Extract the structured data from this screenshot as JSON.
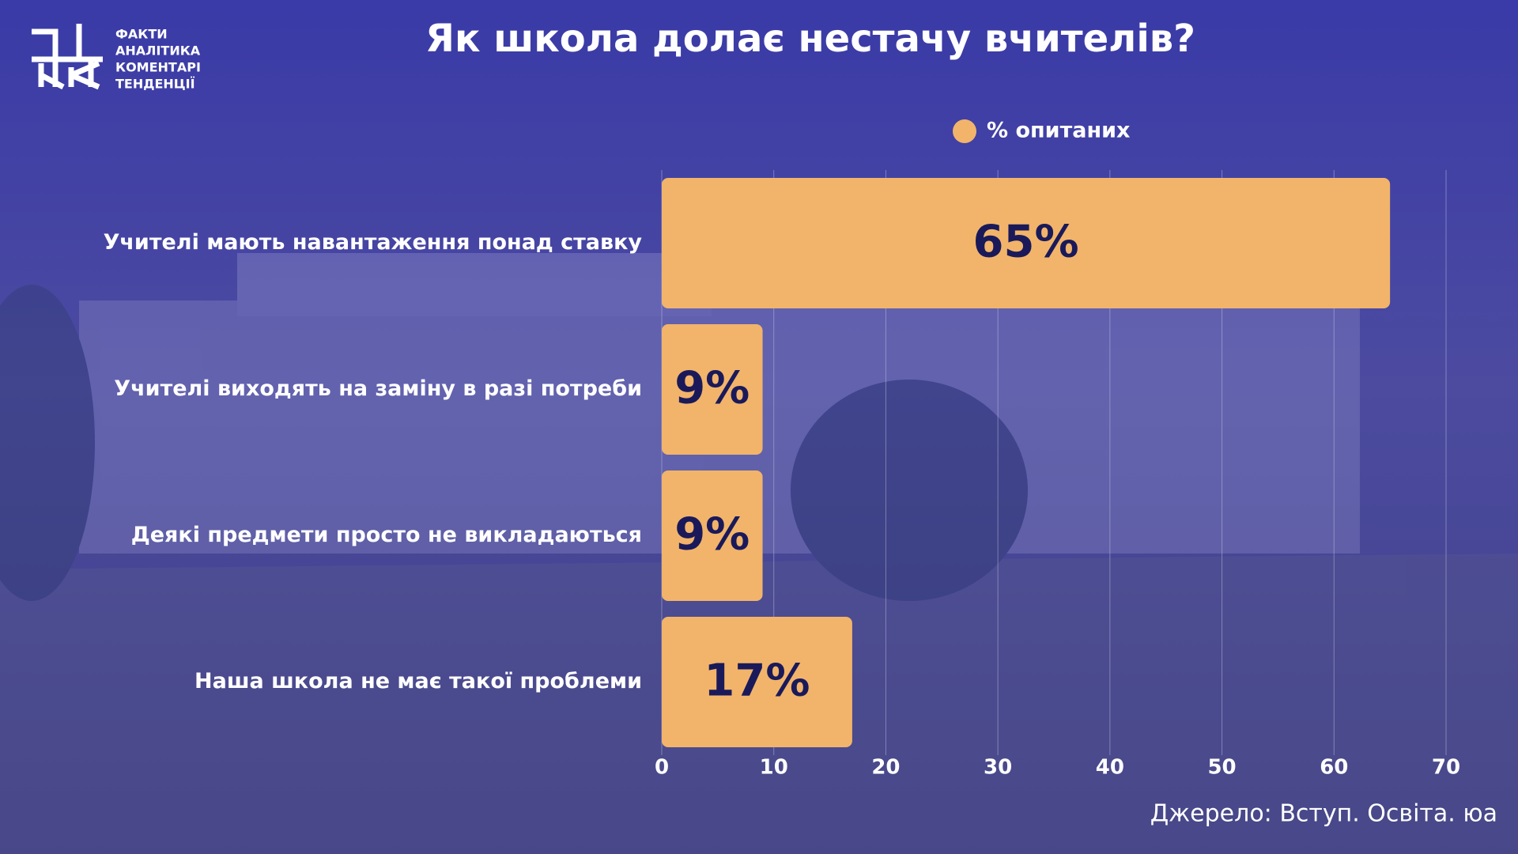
{
  "chart_data": {
    "type": "hbar",
    "title": "Як школа долає нестачу вчителів?",
    "categories": [
      "Учителі мають навантаження понад ставку",
      "Учителі виходять на заміну в разі потреби",
      "Деякі предмети просто не викладаються",
      "Наша школа не має такої проблеми"
    ],
    "series": [
      {
        "name": "% опитаних",
        "color": "#f2b46a",
        "values": [
          65,
          9,
          9,
          17
        ],
        "value_labels": [
          "65%",
          "9%",
          "9%",
          "17%"
        ]
      }
    ],
    "xlim": [
      0,
      70
    ],
    "xticks": [
      0,
      10,
      20,
      30,
      40,
      50,
      60,
      70
    ],
    "grid": true,
    "legend": "top",
    "source": "Джерело: Вступ. Освіта. юа"
  },
  "logo": {
    "lines": [
      "ФАКТИ",
      "АНАЛІТИКА",
      "КОМЕНТАРІ",
      "ТЕНДЕНЦІЇ"
    ]
  }
}
